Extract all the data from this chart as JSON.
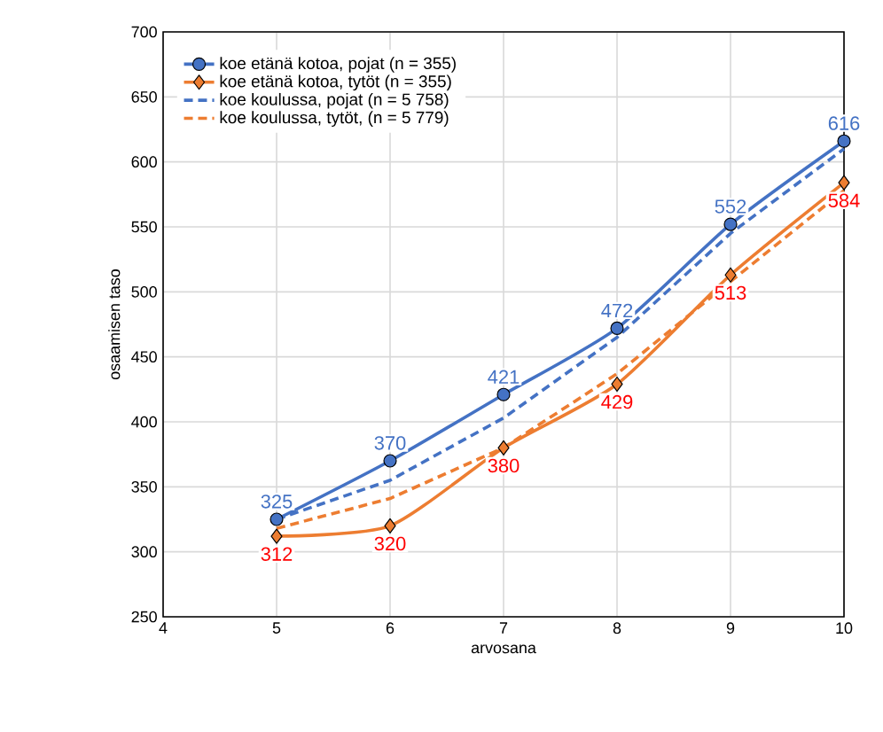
{
  "chart_data": {
    "type": "line",
    "xlabel": "arvosana",
    "ylabel": "osaamisen taso",
    "x": [
      5,
      6,
      7,
      8,
      9,
      10
    ],
    "series": [
      {
        "name": "koe etänä kotoa, pojat (n = 355)",
        "color": "#4472c4",
        "values": [
          325,
          370,
          421,
          472,
          552,
          616
        ],
        "marker": "circle",
        "line_style": "solid",
        "value_labels": [
          "325",
          "370",
          "421",
          "472",
          "552",
          "616"
        ]
      },
      {
        "name": "koe etänä kotoa, tytöt (n = 355)",
        "color": "#ed7d31",
        "values": [
          312,
          320,
          380,
          429,
          513,
          584
        ],
        "marker": "diamond",
        "line_style": "solid",
        "value_labels": [
          "312",
          "320",
          "380",
          "429",
          "513",
          "584"
        ]
      },
      {
        "name": "koe koulussa, pojat (n = 5 758)",
        "color": "#4472c4",
        "values": [
          325,
          355,
          403,
          465,
          545,
          610
        ],
        "marker": "none",
        "line_style": "dashed"
      },
      {
        "name": "koe koulussa, tytöt, (n = 5 779)",
        "color": "#ed7d31",
        "values": [
          318,
          341,
          380,
          437,
          508,
          578
        ],
        "marker": "none",
        "line_style": "dashed"
      }
    ],
    "xlim": [
      4,
      10
    ],
    "xticks": [
      4,
      5,
      6,
      7,
      8,
      9,
      10
    ],
    "ylim": [
      250,
      700
    ],
    "yticks": [
      250,
      300,
      350,
      400,
      450,
      500,
      550,
      600,
      650,
      700
    ],
    "grid": true,
    "legend": "top left"
  }
}
